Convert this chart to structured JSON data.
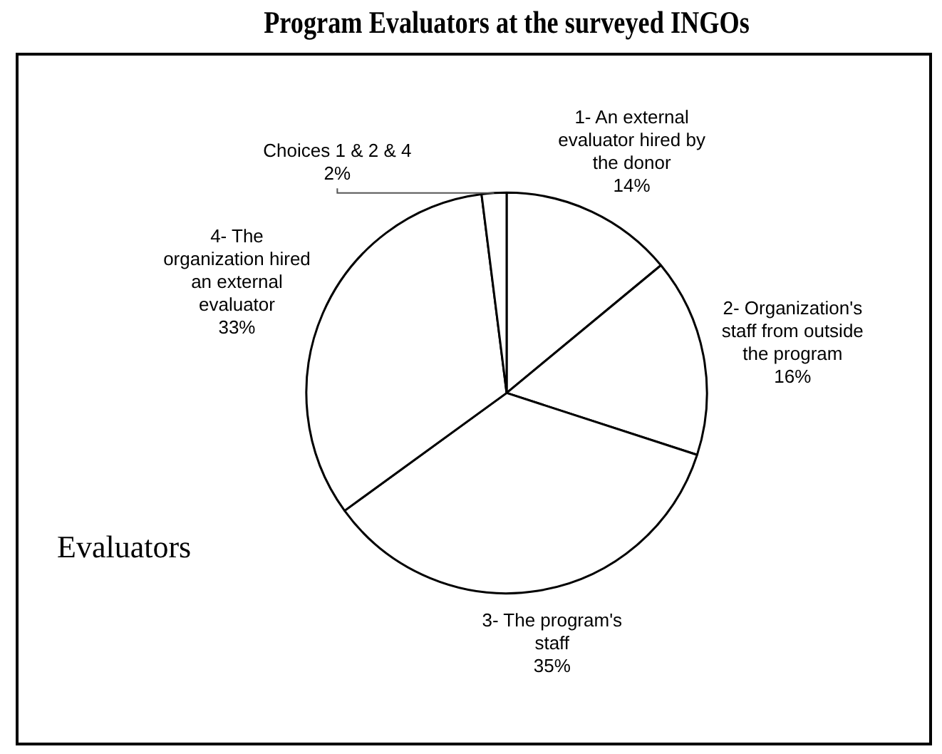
{
  "chart_data": {
    "type": "pie",
    "title": "Program Evaluators at the surveyed INGOs",
    "categories": [
      "1- An external evaluator hired by the donor",
      "2- Organization's staff from outside the program",
      "3- The program's staff",
      "4- The organization hired an external evaluator",
      "Choices 1 & 2 & 4"
    ],
    "values": [
      14,
      16,
      35,
      33,
      2
    ],
    "value_labels": [
      "14%",
      "16%",
      "35%",
      "33%",
      "2%"
    ],
    "colors": [
      "#ffffff",
      "#ffffff",
      "#ffffff",
      "#ffffff",
      "#ffffff"
    ],
    "legend": false,
    "annotations": [
      "Evaluators"
    ]
  }
}
